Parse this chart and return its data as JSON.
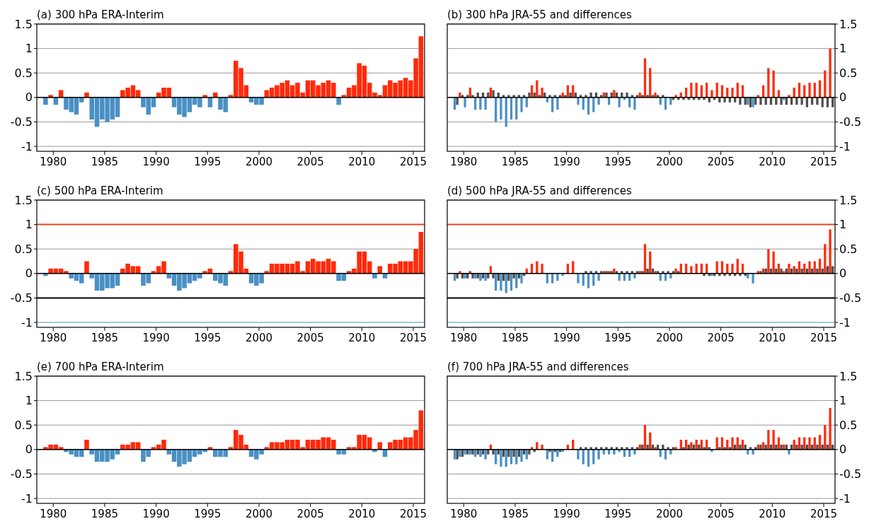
{
  "chart_data": [
    {
      "type": "bar",
      "title": "(a) 300 hPa  ERA-Interim",
      "x": [
        1979.25,
        1979.75,
        1980.25,
        1980.75,
        1981.25,
        1981.75,
        1982.25,
        1982.75,
        1983.25,
        1983.75,
        1984.25,
        1984.75,
        1985.25,
        1985.75,
        1986.25,
        1986.75,
        1987.25,
        1987.75,
        1988.25,
        1988.75,
        1989.25,
        1989.75,
        1990.25,
        1990.75,
        1991.25,
        1991.75,
        1992.25,
        1992.75,
        1993.25,
        1993.75,
        1994.25,
        1994.75,
        1995.25,
        1995.75,
        1996.25,
        1996.75,
        1997.25,
        1997.75,
        1998.25,
        1998.75,
        1999.25,
        1999.75,
        2000.25,
        2000.75,
        2001.25,
        2001.75,
        2002.25,
        2002.75,
        2003.25,
        2003.75,
        2004.25,
        2004.75,
        2005.25,
        2005.75,
        2006.25,
        2006.75,
        2007.25,
        2007.75,
        2008.25,
        2008.75,
        2009.25,
        2009.75,
        2010.25,
        2010.75,
        2011.25,
        2011.75,
        2012.25,
        2012.75,
        2013.25,
        2013.75,
        2014.25,
        2014.75,
        2015.25,
        2015.75
      ],
      "series": [
        {
          "color": "#ff2a0a",
          "values": [
            null,
            0.05,
            null,
            0.15,
            null,
            null,
            null,
            null,
            0.1,
            null,
            null,
            null,
            null,
            null,
            null,
            0.15,
            0.2,
            0.25,
            0.15,
            null,
            null,
            null,
            0.1,
            0.2,
            0.2,
            null,
            null,
            null,
            null,
            null,
            null,
            0.05,
            null,
            0.1,
            null,
            null,
            0.05,
            0.75,
            0.6,
            0.25,
            null,
            null,
            null,
            0.15,
            0.2,
            0.25,
            0.3,
            0.35,
            0.25,
            0.3,
            0.1,
            0.35,
            0.35,
            0.25,
            0.3,
            0.35,
            0.3,
            null,
            0.05,
            0.2,
            0.25,
            0.7,
            0.65,
            0.3,
            0.1,
            0.05,
            0.25,
            0.35,
            0.3,
            0.35,
            0.4,
            0.35,
            0.8,
            1.25
          ]
        },
        {
          "color": "#4a90c4",
          "values": [
            -0.15,
            null,
            -0.15,
            null,
            -0.25,
            -0.3,
            -0.35,
            -0.1,
            null,
            -0.45,
            -0.6,
            -0.45,
            -0.5,
            -0.45,
            -0.4,
            null,
            null,
            null,
            null,
            -0.2,
            -0.35,
            -0.2,
            null,
            null,
            null,
            -0.2,
            -0.35,
            -0.4,
            -0.3,
            -0.15,
            -0.2,
            null,
            -0.2,
            null,
            -0.25,
            -0.3,
            null,
            null,
            null,
            null,
            -0.1,
            -0.15,
            -0.15,
            null,
            null,
            null,
            null,
            null,
            null,
            null,
            null,
            null,
            null,
            null,
            null,
            null,
            null,
            -0.15,
            null,
            null,
            null,
            null,
            null,
            null,
            null,
            null,
            null,
            null,
            null,
            null,
            null,
            null,
            null,
            null
          ]
        }
      ],
      "xlim": [
        1978.4,
        2016.1
      ],
      "xticks": [
        1980,
        1985,
        1990,
        1995,
        2000,
        2005,
        2010,
        2015
      ],
      "ylim": [
        -1.1,
        1.5
      ],
      "yticks": [
        -1,
        -0.5,
        0,
        0.5,
        1,
        1.5
      ],
      "grid": "y"
    },
    {
      "type": "bar",
      "title": "(b) 300 hPa  JRA-55 and differences",
      "x": [
        1979.25,
        1979.75,
        1980.25,
        1980.75,
        1981.25,
        1981.75,
        1982.25,
        1982.75,
        1983.25,
        1983.75,
        1984.25,
        1984.75,
        1985.25,
        1985.75,
        1986.25,
        1986.75,
        1987.25,
        1987.75,
        1988.25,
        1988.75,
        1989.25,
        1989.75,
        1990.25,
        1990.75,
        1991.25,
        1991.75,
        1992.25,
        1992.75,
        1993.25,
        1993.75,
        1994.25,
        1994.75,
        1995.25,
        1995.75,
        1996.25,
        1996.75,
        1997.25,
        1997.75,
        1998.25,
        1998.75,
        1999.25,
        1999.75,
        2000.25,
        2000.75,
        2001.25,
        2001.75,
        2002.25,
        2002.75,
        2003.25,
        2003.75,
        2004.25,
        2004.75,
        2005.25,
        2005.75,
        2006.25,
        2006.75,
        2007.25,
        2007.75,
        2008.25,
        2008.75,
        2009.25,
        2009.75,
        2010.25,
        2010.75,
        2011.25,
        2011.75,
        2012.25,
        2012.75,
        2013.25,
        2013.75,
        2014.25,
        2014.75,
        2015.25,
        2015.75
      ],
      "series": [
        {
          "color": "#ff2a0a",
          "values": [
            null,
            0.1,
            null,
            0.2,
            null,
            null,
            null,
            0.2,
            null,
            null,
            null,
            null,
            null,
            null,
            null,
            0.25,
            0.35,
            0.2,
            null,
            null,
            null,
            0.1,
            0.25,
            0.25,
            null,
            null,
            null,
            null,
            null,
            0.1,
            null,
            0.15,
            null,
            null,
            null,
            null,
            0.1,
            0.8,
            0.6,
            0.1,
            null,
            null,
            null,
            0.05,
            0.1,
            0.2,
            0.3,
            0.3,
            0.25,
            0.3,
            0.15,
            0.3,
            0.25,
            0.2,
            0.2,
            0.3,
            0.25,
            null,
            null,
            0.05,
            0.25,
            0.6,
            0.55,
            0.15,
            null,
            0.05,
            0.2,
            0.3,
            0.25,
            0.3,
            0.3,
            0.35,
            0.55,
            1.0
          ]
        },
        {
          "color": "#4a90c4",
          "values": [
            -0.25,
            null,
            -0.2,
            null,
            -0.25,
            -0.25,
            -0.25,
            null,
            -0.5,
            -0.45,
            -0.6,
            -0.45,
            -0.45,
            -0.3,
            -0.2,
            null,
            null,
            null,
            -0.1,
            -0.3,
            -0.25,
            null,
            null,
            null,
            -0.15,
            -0.25,
            -0.35,
            -0.3,
            -0.15,
            null,
            -0.15,
            null,
            -0.2,
            -0.05,
            -0.2,
            -0.25,
            null,
            null,
            null,
            null,
            -0.15,
            -0.25,
            -0.15,
            null,
            null,
            null,
            null,
            null,
            null,
            null,
            null,
            null,
            null,
            null,
            null,
            null,
            null,
            -0.15,
            -0.2,
            null,
            null,
            null,
            null,
            null,
            -0.05,
            null,
            null,
            null,
            null,
            null,
            null,
            null,
            null,
            null
          ]
        },
        {
          "color": "#4d4d4d",
          "values": [
            -0.15,
            0.05,
            0.05,
            0.05,
            0.1,
            0.1,
            0.1,
            0.15,
            0.1,
            0.05,
            0.05,
            0.05,
            0.05,
            0.05,
            0.1,
            0.1,
            0.05,
            0.1,
            0.05,
            0.05,
            0.05,
            0.05,
            0.1,
            0.1,
            0.05,
            0.05,
            0.1,
            0.1,
            0.05,
            0.1,
            0.1,
            0.1,
            0.1,
            0.1,
            0.05,
            0.05,
            0.05,
            0.05,
            0.05,
            0.05,
            0.05,
            0,
            -0.05,
            -0.05,
            -0.05,
            -0.05,
            -0.05,
            -0.05,
            -0.05,
            -0.1,
            -0.05,
            -0.1,
            -0.1,
            -0.1,
            -0.1,
            -0.15,
            -0.15,
            -0.2,
            -0.15,
            -0.15,
            -0.15,
            -0.15,
            -0.15,
            -0.15,
            -0.15,
            -0.15,
            -0.15,
            -0.15,
            -0.2,
            -0.15,
            -0.15,
            -0.2,
            -0.2,
            -0.2
          ]
        }
      ],
      "xlim": [
        1978.4,
        2016.1
      ],
      "xticks": [
        1980,
        1985,
        1990,
        1995,
        2000,
        2005,
        2010,
        2015
      ],
      "ylim": [
        -1.1,
        1.5
      ],
      "yticks": [
        -1,
        -0.5,
        0,
        0.5,
        1,
        1.5
      ],
      "grid": "y"
    },
    {
      "type": "bar",
      "title": "(c) 500 hPa  ERA-Interim",
      "x": [
        1979.25,
        1979.75,
        1980.25,
        1980.75,
        1981.25,
        1981.75,
        1982.25,
        1982.75,
        1983.25,
        1983.75,
        1984.25,
        1984.75,
        1985.25,
        1985.75,
        1986.25,
        1986.75,
        1987.25,
        1987.75,
        1988.25,
        1988.75,
        1989.25,
        1989.75,
        1990.25,
        1990.75,
        1991.25,
        1991.75,
        1992.25,
        1992.75,
        1993.25,
        1993.75,
        1994.25,
        1994.75,
        1995.25,
        1995.75,
        1996.25,
        1996.75,
        1997.25,
        1997.75,
        1998.25,
        1998.75,
        1999.25,
        1999.75,
        2000.25,
        2000.75,
        2001.25,
        2001.75,
        2002.25,
        2002.75,
        2003.25,
        2003.75,
        2004.25,
        2004.75,
        2005.25,
        2005.75,
        2006.25,
        2006.75,
        2007.25,
        2007.75,
        2008.25,
        2008.75,
        2009.25,
        2009.75,
        2010.25,
        2010.75,
        2011.25,
        2011.75,
        2012.25,
        2012.75,
        2013.25,
        2013.75,
        2014.25,
        2014.75,
        2015.25,
        2015.75
      ],
      "series": [
        {
          "color": "#ff2a0a",
          "values": [
            null,
            0.1,
            0.1,
            0.1,
            0.05,
            null,
            null,
            null,
            0.25,
            null,
            null,
            null,
            null,
            null,
            null,
            0.1,
            0.2,
            0.15,
            0.15,
            null,
            null,
            0.05,
            0.15,
            0.25,
            null,
            null,
            null,
            null,
            null,
            null,
            null,
            0.05,
            0.1,
            null,
            null,
            null,
            0.05,
            0.6,
            0.45,
            0.1,
            null,
            null,
            null,
            0.05,
            0.2,
            0.2,
            0.2,
            0.2,
            0.2,
            0.25,
            0.05,
            0.25,
            0.3,
            0.25,
            0.25,
            0.3,
            0.25,
            null,
            null,
            0.05,
            0.1,
            0.45,
            0.45,
            0.25,
            null,
            0.15,
            null,
            0.2,
            0.2,
            0.25,
            0.25,
            0.25,
            0.5,
            0.85
          ]
        },
        {
          "color": "#4a90c4",
          "values": [
            -0.05,
            null,
            null,
            null,
            null,
            -0.1,
            -0.15,
            -0.2,
            null,
            -0.1,
            -0.35,
            -0.35,
            -0.3,
            -0.3,
            -0.25,
            null,
            null,
            null,
            null,
            -0.25,
            -0.2,
            null,
            null,
            null,
            -0.1,
            -0.25,
            -0.35,
            -0.3,
            -0.2,
            -0.15,
            -0.1,
            null,
            null,
            -0.15,
            -0.2,
            -0.25,
            null,
            null,
            null,
            null,
            -0.2,
            -0.25,
            -0.2,
            null,
            null,
            null,
            null,
            null,
            null,
            null,
            null,
            null,
            null,
            null,
            null,
            null,
            null,
            -0.15,
            -0.15,
            null,
            null,
            null,
            null,
            null,
            -0.1,
            null,
            -0.1,
            null,
            null,
            null,
            null,
            null,
            null,
            null
          ]
        }
      ],
      "xlim": [
        1978.4,
        2016.1
      ],
      "xticks": [
        1980,
        1985,
        1990,
        1995,
        2000,
        2005,
        2010,
        2015
      ],
      "ylim": [
        -1.1,
        1.5
      ],
      "yticks": [
        -1,
        -0.5,
        0,
        0.5,
        1,
        1.5
      ],
      "grid": "y",
      "ref_lines": [
        {
          "axis": "y",
          "value": 1,
          "color": "#e8472b"
        },
        {
          "axis": "y",
          "value": -0.5,
          "color": "#000000"
        },
        {
          "axis": "y",
          "value": -1,
          "color": "#9ecae1"
        }
      ]
    },
    {
      "type": "bar",
      "title": "(d) 500 hPa  JRA-55 and differences",
      "x": [
        1979.25,
        1979.75,
        1980.25,
        1980.75,
        1981.25,
        1981.75,
        1982.25,
        1982.75,
        1983.25,
        1983.75,
        1984.25,
        1984.75,
        1985.25,
        1985.75,
        1986.25,
        1986.75,
        1987.25,
        1987.75,
        1988.25,
        1988.75,
        1989.25,
        1989.75,
        1990.25,
        1990.75,
        1991.25,
        1991.75,
        1992.25,
        1992.75,
        1993.25,
        1993.75,
        1994.25,
        1994.75,
        1995.25,
        1995.75,
        1996.25,
        1996.75,
        1997.25,
        1997.75,
        1998.25,
        1998.75,
        1999.25,
        1999.75,
        2000.25,
        2000.75,
        2001.25,
        2001.75,
        2002.25,
        2002.75,
        2003.25,
        2003.75,
        2004.25,
        2004.75,
        2005.25,
        2005.75,
        2006.25,
        2006.75,
        2007.25,
        2007.75,
        2008.25,
        2008.75,
        2009.25,
        2009.75,
        2010.25,
        2010.75,
        2011.25,
        2011.75,
        2012.25,
        2012.75,
        2013.25,
        2013.75,
        2014.25,
        2014.75,
        2015.25,
        2015.75
      ],
      "series": [
        {
          "color": "#ff2a0a",
          "values": [
            null,
            0.05,
            null,
            0.05,
            null,
            null,
            null,
            0.15,
            null,
            null,
            null,
            null,
            null,
            null,
            0.1,
            0.2,
            0.25,
            0.2,
            null,
            null,
            null,
            null,
            0.2,
            0.25,
            null,
            null,
            null,
            null,
            null,
            0.05,
            0.05,
            0.1,
            null,
            null,
            null,
            null,
            0.05,
            0.6,
            0.45,
            0.05,
            null,
            null,
            null,
            0.1,
            0.2,
            0.2,
            0.15,
            0.2,
            0.2,
            0.2,
            null,
            0.25,
            0.25,
            0.2,
            0.2,
            0.3,
            0.2,
            null,
            null,
            0.05,
            0.1,
            0.5,
            0.45,
            0.2,
            0.05,
            0.2,
            0.15,
            0.25,
            0.2,
            0.25,
            0.25,
            0.3,
            0.6,
            0.9
          ]
        },
        {
          "color": "#4a90c4",
          "values": [
            -0.15,
            null,
            -0.1,
            null,
            -0.1,
            -0.15,
            -0.15,
            null,
            -0.35,
            -0.35,
            -0.4,
            -0.35,
            -0.3,
            -0.2,
            null,
            null,
            null,
            null,
            -0.2,
            -0.2,
            -0.15,
            -0.05,
            null,
            null,
            -0.2,
            -0.25,
            -0.3,
            -0.25,
            -0.15,
            null,
            null,
            null,
            -0.15,
            -0.15,
            -0.15,
            -0.1,
            null,
            null,
            null,
            null,
            -0.15,
            -0.15,
            -0.1,
            null,
            null,
            null,
            null,
            null,
            null,
            null,
            -0.05,
            null,
            null,
            null,
            null,
            null,
            null,
            -0.1,
            -0.2,
            null,
            null,
            null,
            null,
            null,
            null,
            null,
            null,
            null,
            null,
            null,
            null,
            null,
            null,
            null
          ]
        },
        {
          "color": "#4d4d4d",
          "values": [
            -0.1,
            -0.1,
            -0.1,
            -0.1,
            -0.1,
            -0.1,
            -0.1,
            -0.1,
            -0.15,
            -0.15,
            -0.15,
            -0.1,
            -0.1,
            -0.05,
            0,
            0,
            0,
            0,
            0,
            0,
            0,
            0,
            0,
            0,
            0,
            0.05,
            0.05,
            0.05,
            0.05,
            0.05,
            0.05,
            0.05,
            0.05,
            0.05,
            0.05,
            0.05,
            0.05,
            0.1,
            0.1,
            0.05,
            0.05,
            0.05,
            0.05,
            0.05,
            0,
            0,
            0,
            0,
            -0.05,
            -0.05,
            -0.05,
            -0.05,
            -0.05,
            -0.05,
            -0.05,
            -0.05,
            -0.05,
            0,
            0,
            0.05,
            0.1,
            0.1,
            0.1,
            0.1,
            0.1,
            0.1,
            0.1,
            0.1,
            0.1,
            0.1,
            0.1,
            0.1,
            0.15,
            0.15
          ]
        }
      ],
      "xlim": [
        1978.4,
        2016.1
      ],
      "xticks": [
        1980,
        1985,
        1990,
        1995,
        2000,
        2005,
        2010,
        2015
      ],
      "ylim": [
        -1.1,
        1.5
      ],
      "yticks": [
        -1,
        -0.5,
        0,
        0.5,
        1,
        1.5
      ],
      "grid": "y",
      "ref_lines": [
        {
          "axis": "y",
          "value": 1,
          "color": "#e8472b"
        },
        {
          "axis": "y",
          "value": -0.5,
          "color": "#000000"
        },
        {
          "axis": "y",
          "value": -1,
          "color": "#9ecae1"
        }
      ]
    },
    {
      "type": "bar",
      "title": "(e) 700 hPa  ERA-Interim",
      "x": [
        1979.25,
        1979.75,
        1980.25,
        1980.75,
        1981.25,
        1981.75,
        1982.25,
        1982.75,
        1983.25,
        1983.75,
        1984.25,
        1984.75,
        1985.25,
        1985.75,
        1986.25,
        1986.75,
        1987.25,
        1987.75,
        1988.25,
        1988.75,
        1989.25,
        1989.75,
        1990.25,
        1990.75,
        1991.25,
        1991.75,
        1992.25,
        1992.75,
        1993.25,
        1993.75,
        1994.25,
        1994.75,
        1995.25,
        1995.75,
        1996.25,
        1996.75,
        1997.25,
        1997.75,
        1998.25,
        1998.75,
        1999.25,
        1999.75,
        2000.25,
        2000.75,
        2001.25,
        2001.75,
        2002.25,
        2002.75,
        2003.25,
        2003.75,
        2004.25,
        2004.75,
        2005.25,
        2005.75,
        2006.25,
        2006.75,
        2007.25,
        2007.75,
        2008.25,
        2008.75,
        2009.25,
        2009.75,
        2010.25,
        2010.75,
        2011.25,
        2011.75,
        2012.25,
        2012.75,
        2013.25,
        2013.75,
        2014.25,
        2014.75,
        2015.25,
        2015.75
      ],
      "series": [
        {
          "color": "#ff2a0a",
          "values": [
            0.05,
            0.1,
            0.1,
            0.05,
            null,
            null,
            null,
            null,
            0.2,
            null,
            null,
            null,
            null,
            null,
            null,
            0.1,
            0.1,
            0.15,
            0.15,
            null,
            null,
            0.05,
            0.1,
            0.2,
            null,
            null,
            null,
            null,
            null,
            null,
            null,
            null,
            0.05,
            null,
            null,
            null,
            0.05,
            0.4,
            0.3,
            0.1,
            null,
            null,
            null,
            0.05,
            0.15,
            0.15,
            0.15,
            0.2,
            0.2,
            0.2,
            0.05,
            0.2,
            0.2,
            0.2,
            0.25,
            0.25,
            0.2,
            null,
            null,
            0.05,
            0.05,
            0.3,
            0.3,
            0.25,
            null,
            0.15,
            null,
            0.15,
            0.2,
            0.2,
            0.25,
            0.25,
            0.4,
            0.8
          ]
        },
        {
          "color": "#4a90c4",
          "values": [
            null,
            null,
            null,
            null,
            -0.05,
            -0.1,
            -0.15,
            -0.15,
            null,
            -0.1,
            -0.25,
            -0.25,
            -0.25,
            -0.2,
            -0.1,
            null,
            null,
            null,
            null,
            -0.25,
            -0.15,
            null,
            null,
            null,
            -0.1,
            -0.25,
            -0.35,
            -0.3,
            -0.25,
            -0.15,
            -0.1,
            -0.05,
            null,
            -0.15,
            -0.15,
            -0.15,
            null,
            null,
            null,
            null,
            -0.15,
            -0.2,
            -0.1,
            null,
            null,
            null,
            null,
            null,
            null,
            null,
            null,
            null,
            null,
            null,
            null,
            null,
            null,
            -0.1,
            -0.1,
            null,
            null,
            null,
            null,
            null,
            -0.05,
            null,
            -0.15,
            null,
            null,
            null,
            null,
            null,
            null,
            null
          ]
        }
      ],
      "xlim": [
        1978.4,
        2016.1
      ],
      "xticks": [
        1980,
        1985,
        1990,
        1995,
        2000,
        2005,
        2010,
        2015
      ],
      "ylim": [
        -1.1,
        1.5
      ],
      "yticks": [
        -1,
        -0.5,
        0,
        0.5,
        1,
        1.5
      ],
      "grid": "y"
    },
    {
      "type": "bar",
      "title": "(f) 700 hPa  JRA-55 and differences",
      "x": [
        1979.25,
        1979.75,
        1980.25,
        1980.75,
        1981.25,
        1981.75,
        1982.25,
        1982.75,
        1983.25,
        1983.75,
        1984.25,
        1984.75,
        1985.25,
        1985.75,
        1986.25,
        1986.75,
        1987.25,
        1987.75,
        1988.25,
        1988.75,
        1989.25,
        1989.75,
        1990.25,
        1990.75,
        1991.25,
        1991.75,
        1992.25,
        1992.75,
        1993.25,
        1993.75,
        1994.25,
        1994.75,
        1995.25,
        1995.75,
        1996.25,
        1996.75,
        1997.25,
        1997.75,
        1998.25,
        1998.75,
        1999.25,
        1999.75,
        2000.25,
        2000.75,
        2001.25,
        2001.75,
        2002.25,
        2002.75,
        2003.25,
        2003.75,
        2004.25,
        2004.75,
        2005.25,
        2005.75,
        2006.25,
        2006.75,
        2007.25,
        2007.75,
        2008.25,
        2008.75,
        2009.25,
        2009.75,
        2010.25,
        2010.75,
        2011.25,
        2011.75,
        2012.25,
        2012.75,
        2013.25,
        2013.75,
        2014.25,
        2014.75,
        2015.25,
        2015.75
      ],
      "series": [
        {
          "color": "#ff2a0a",
          "values": [
            null,
            null,
            null,
            null,
            null,
            null,
            null,
            0.1,
            null,
            null,
            null,
            null,
            null,
            null,
            null,
            0.05,
            0.15,
            0.1,
            null,
            null,
            null,
            null,
            0.1,
            0.2,
            null,
            null,
            null,
            null,
            null,
            null,
            null,
            null,
            null,
            null,
            null,
            null,
            0.1,
            0.5,
            0.35,
            0.05,
            null,
            null,
            null,
            0.05,
            0.2,
            0.2,
            0.15,
            0.2,
            0.2,
            0.2,
            null,
            0.25,
            0.25,
            0.2,
            0.25,
            0.25,
            0.2,
            null,
            null,
            0.1,
            0.15,
            0.4,
            0.4,
            0.25,
            0.1,
            null,
            0.2,
            0.25,
            0.25,
            0.25,
            0.25,
            0.3,
            0.5,
            0.85
          ]
        },
        {
          "color": "#4a90c4",
          "values": [
            -0.2,
            -0.15,
            -0.1,
            -0.1,
            -0.15,
            -0.15,
            -0.2,
            null,
            -0.3,
            -0.35,
            -0.35,
            -0.3,
            -0.3,
            -0.25,
            -0.2,
            null,
            null,
            null,
            -0.2,
            -0.25,
            -0.15,
            -0.05,
            null,
            null,
            -0.2,
            -0.3,
            -0.35,
            -0.3,
            -0.2,
            -0.1,
            -0.1,
            -0.1,
            -0.05,
            -0.15,
            -0.15,
            -0.1,
            null,
            null,
            null,
            null,
            -0.15,
            -0.2,
            -0.1,
            null,
            null,
            null,
            null,
            null,
            null,
            null,
            -0.05,
            null,
            null,
            null,
            null,
            null,
            null,
            -0.1,
            -0.1,
            null,
            null,
            null,
            null,
            null,
            null,
            -0.1,
            null,
            null,
            null,
            null,
            null,
            null,
            null,
            null
          ]
        },
        {
          "color": "#4d4d4d",
          "values": [
            -0.2,
            -0.15,
            -0.1,
            -0.1,
            -0.1,
            -0.1,
            -0.1,
            -0.1,
            -0.1,
            -0.15,
            -0.15,
            -0.15,
            -0.15,
            -0.1,
            -0.1,
            -0.05,
            0,
            0,
            -0.05,
            -0.05,
            -0.05,
            0,
            0,
            0,
            0.05,
            0.05,
            0.05,
            0.05,
            0.05,
            0.05,
            0.05,
            0.05,
            0.05,
            0.05,
            0.05,
            0.05,
            0.1,
            0.1,
            0.1,
            0.1,
            0.1,
            0.05,
            0.05,
            0,
            0.05,
            0.1,
            0.1,
            0.1,
            0.05,
            0.05,
            0,
            0.05,
            0.05,
            0.05,
            0.1,
            0.1,
            0.1,
            0.05,
            0.05,
            0.1,
            0.1,
            0.1,
            0.1,
            0.1,
            0.1,
            0.1,
            0.1,
            0.1,
            0.1,
            0.1,
            0.1,
            0.1,
            0.1,
            0.1
          ]
        }
      ],
      "xlim": [
        1978.4,
        2016.1
      ],
      "xticks": [
        1980,
        1985,
        1990,
        1995,
        2000,
        2005,
        2010,
        2015
      ],
      "ylim": [
        -1.1,
        1.5
      ],
      "yticks": [
        -1,
        -0.5,
        0,
        0.5,
        1,
        1.5
      ],
      "grid": "y"
    }
  ]
}
